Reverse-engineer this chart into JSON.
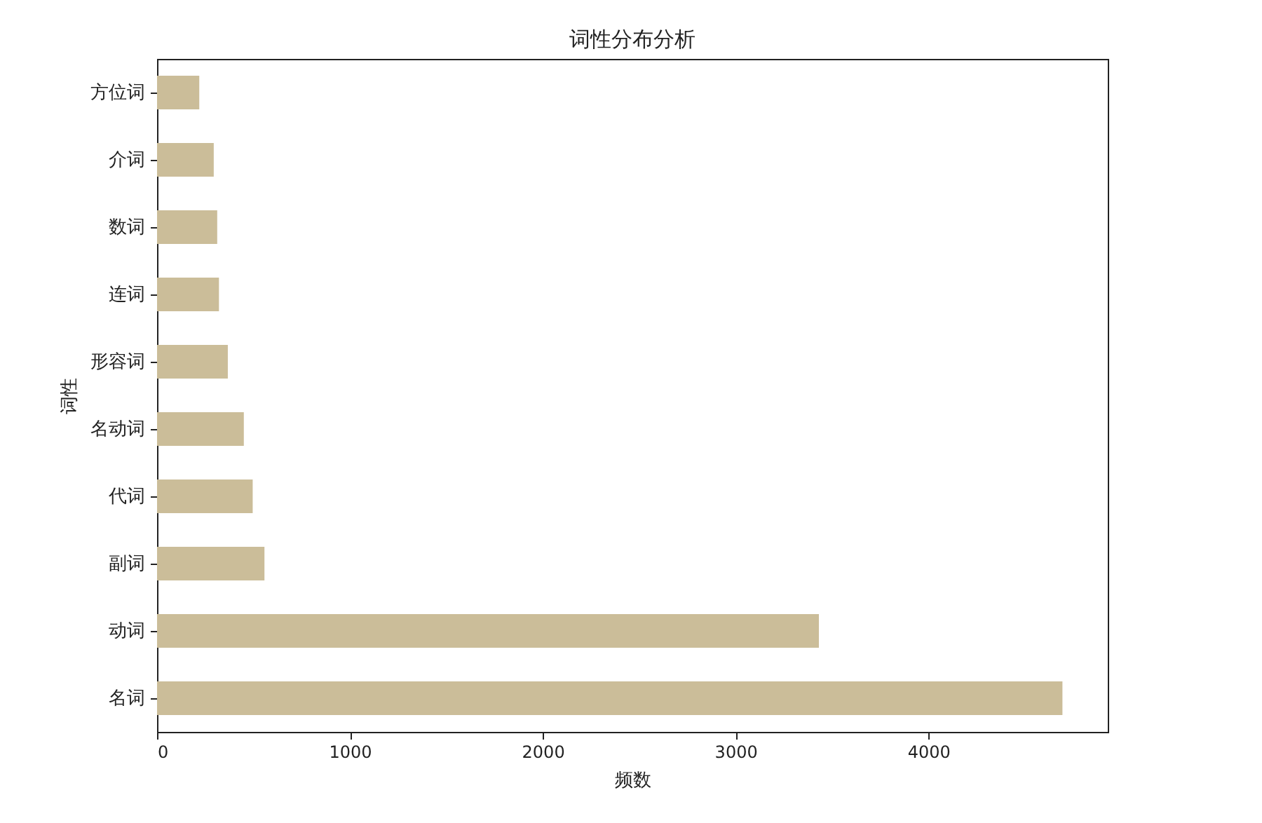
{
  "chart_data": {
    "type": "bar",
    "orientation": "horizontal",
    "title": "词性分布分析",
    "xlabel": "频数",
    "ylabel": "词性",
    "categories": [
      "方位词",
      "介词",
      "数词",
      "连词",
      "形容词",
      "名动词",
      "代词",
      "副词",
      "动词",
      "名词"
    ],
    "values": [
      219,
      294,
      312,
      321,
      367,
      450,
      496,
      557,
      3432,
      4695
    ],
    "color": "#cbbd99",
    "xlim": [
      0,
      4930
    ],
    "xticks": [
      0,
      1000,
      2000,
      3000,
      4000
    ],
    "grid": false
  }
}
